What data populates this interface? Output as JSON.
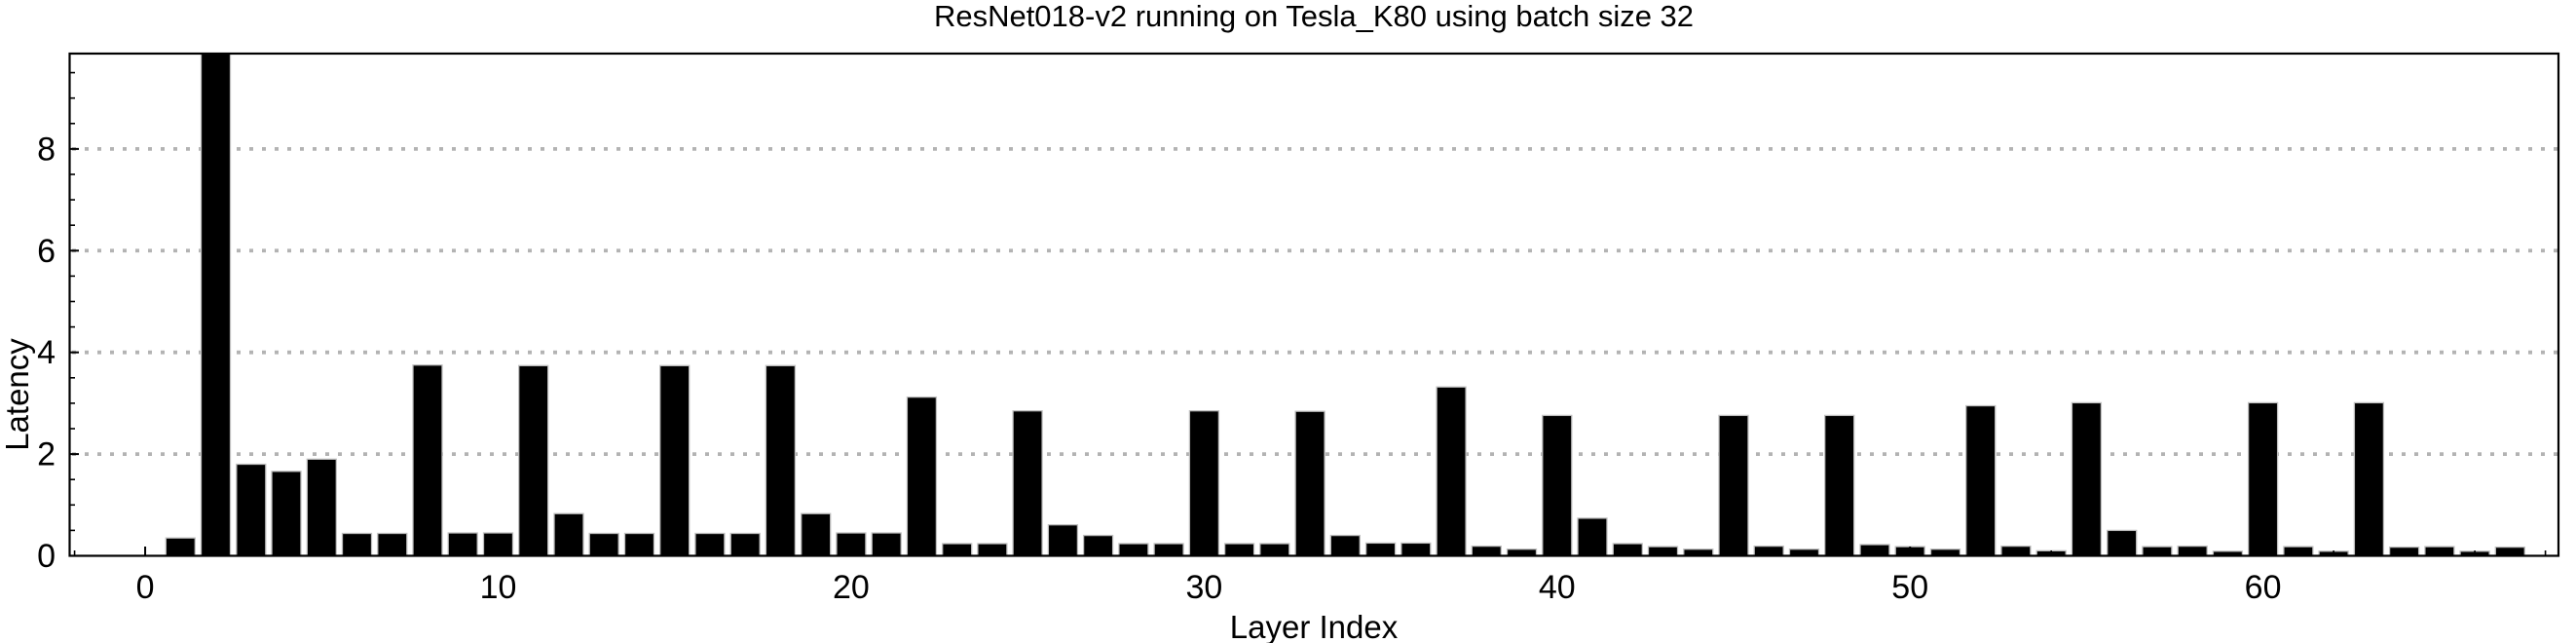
{
  "figure": {
    "title": "ResNet018-v2 running on Tesla_K80 using batch size 32",
    "xlabel": "Layer Index",
    "ylabel": "Latency"
  },
  "chart_data": {
    "type": "bar",
    "title": "ResNet018-v2 running on Tesla_K80 using batch size 32",
    "xlabel": "Layer Index",
    "ylabel": "Latency",
    "x": [
      1,
      2,
      3,
      4,
      5,
      6,
      7,
      8,
      9,
      10,
      11,
      12,
      13,
      14,
      15,
      16,
      17,
      18,
      19,
      20,
      21,
      22,
      23,
      24,
      25,
      26,
      27,
      28,
      29,
      30,
      31,
      32,
      33,
      34,
      35,
      36,
      37,
      38,
      39,
      40,
      41,
      42,
      43,
      44,
      45,
      46,
      47,
      48,
      49,
      50,
      51,
      52,
      53,
      54,
      55,
      56,
      57,
      58,
      59,
      60,
      61,
      62,
      63,
      64,
      65,
      66,
      67
    ],
    "values": [
      0.35,
      9.9,
      1.8,
      1.66,
      1.9,
      0.44,
      0.44,
      3.75,
      0.45,
      0.45,
      3.74,
      0.83,
      0.44,
      0.44,
      3.74,
      0.44,
      0.44,
      3.74,
      0.83,
      0.45,
      0.45,
      3.12,
      0.24,
      0.24,
      2.85,
      0.61,
      0.4,
      0.24,
      0.24,
      2.85,
      0.24,
      0.24,
      2.84,
      0.4,
      0.25,
      0.25,
      3.32,
      0.19,
      0.13,
      2.76,
      0.74,
      0.24,
      0.18,
      0.13,
      2.76,
      0.19,
      0.13,
      2.76,
      0.22,
      0.18,
      0.13,
      2.95,
      0.19,
      0.1,
      3.01,
      0.5,
      0.18,
      0.19,
      0.09,
      3.01,
      0.18,
      0.09,
      3.01,
      0.17,
      0.18,
      0.09,
      0.17
    ],
    "clipped_bar": {
      "x": 2,
      "note": "bar reaches top of plot area and is clipped"
    },
    "x_major_ticks": [
      0,
      10,
      20,
      30,
      40,
      50,
      60
    ],
    "x_minor_tick_step": 2,
    "y_major_ticks": [
      0,
      2,
      4,
      6,
      8
    ],
    "y_minor_tick_step": 0.5,
    "xlim": [
      -2.14,
      68.37
    ],
    "ylim": [
      0,
      9.875
    ],
    "grid": {
      "horizontal_at": [
        2,
        4,
        6,
        8
      ],
      "style": "dotted",
      "color": "#b3b3b3"
    },
    "legend": "none",
    "bar_color": "#000000",
    "bar_edge_color": "#bfbfbf",
    "axis_color": "#000000",
    "background": "#ffffff"
  }
}
